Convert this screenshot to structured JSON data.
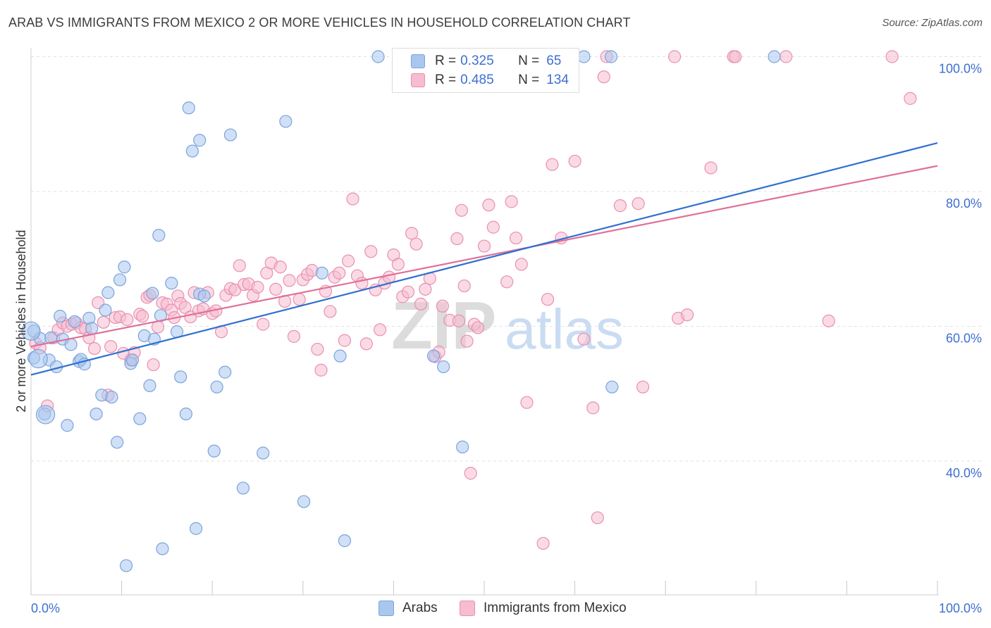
{
  "title": "ARAB VS IMMIGRANTS FROM MEXICO 2 OR MORE VEHICLES IN HOUSEHOLD CORRELATION CHART",
  "source": "Source: ZipAtlas.com",
  "colors": {
    "arabs_fill": "#a9c7ee",
    "arabs_stroke": "#7ba3dd",
    "arabs_line": "#2f6fd0",
    "mexico_fill": "#f6bcd0",
    "mexico_stroke": "#e990b0",
    "mexico_line": "#e07098",
    "tick_label": "#3d6fd1",
    "grid": "#e2e2e2",
    "watermark": "#d8d8d8"
  },
  "legend": {
    "rows": [
      {
        "r_label": "R =",
        "r_value": "0.325",
        "n_label": "N =",
        "n_value": "65",
        "color": "#a9c7ee",
        "border": "#7ba3dd"
      },
      {
        "r_label": "R =",
        "r_value": "0.485",
        "n_label": "N =",
        "n_value": "134",
        "color": "#f6bcd0",
        "border": "#e990b0"
      }
    ]
  },
  "bottom_legend": [
    {
      "label": "Arabs",
      "color": "#a9c7ee",
      "border": "#7ba3dd"
    },
    {
      "label": "Immigrants from Mexico",
      "color": "#f6bcd0",
      "border": "#e990b0"
    }
  ],
  "watermark": {
    "zip": "ZIP",
    "atlas": "atlas"
  },
  "chart_data": {
    "type": "scatter",
    "title": "ARAB VS IMMIGRANTS FROM MEXICO 2 OR MORE VEHICLES IN HOUSEHOLD CORRELATION CHART",
    "xlabel": "",
    "ylabel": "2 or more Vehicles in Household",
    "xlim": [
      0,
      100
    ],
    "ylim": [
      20,
      102
    ],
    "x_tick_labels": [
      "0.0%",
      "100.0%"
    ],
    "y_ticks": [
      40,
      60,
      80,
      100
    ],
    "y_tick_labels": [
      "40.0%",
      "60.0%",
      "80.0%",
      "100.0%"
    ],
    "grid": true,
    "legend_position": "top-center",
    "series": [
      {
        "name": "Arabs",
        "r": 0.325,
        "n": 65,
        "trend": {
          "x0": 0,
          "y0": 52.8,
          "x1": 100,
          "y1": 87.2
        },
        "points": [
          [
            0.3,
            59.3
          ],
          [
            0.3,
            55.3
          ],
          [
            1.0,
            58.2
          ],
          [
            1.5,
            47.0
          ],
          [
            2.0,
            55.0
          ],
          [
            2.2,
            58.3
          ],
          [
            2.8,
            54.0
          ],
          [
            3.2,
            61.5
          ],
          [
            3.5,
            58.1
          ],
          [
            4.0,
            45.3
          ],
          [
            4.4,
            57.3
          ],
          [
            4.8,
            60.7
          ],
          [
            5.3,
            54.8
          ],
          [
            5.5,
            55.1
          ],
          [
            5.9,
            54.4
          ],
          [
            6.4,
            61.2
          ],
          [
            6.7,
            59.7
          ],
          [
            7.2,
            47.0
          ],
          [
            7.8,
            49.8
          ],
          [
            8.2,
            62.4
          ],
          [
            8.5,
            65.0
          ],
          [
            8.9,
            49.5
          ],
          [
            9.5,
            42.8
          ],
          [
            9.8,
            66.9
          ],
          [
            10.3,
            68.8
          ],
          [
            10.5,
            24.5
          ],
          [
            11.0,
            54.5
          ],
          [
            11.2,
            55.0
          ],
          [
            12.0,
            46.3
          ],
          [
            12.5,
            58.6
          ],
          [
            13.1,
            51.2
          ],
          [
            13.4,
            64.9
          ],
          [
            13.6,
            58.1
          ],
          [
            14.1,
            73.5
          ],
          [
            14.3,
            61.6
          ],
          [
            14.5,
            27.0
          ],
          [
            15.5,
            66.4
          ],
          [
            16.1,
            59.2
          ],
          [
            16.5,
            52.5
          ],
          [
            17.1,
            47.0
          ],
          [
            17.4,
            92.4
          ],
          [
            17.8,
            86.0
          ],
          [
            18.2,
            30.0
          ],
          [
            18.6,
            87.6
          ],
          [
            18.6,
            64.8
          ],
          [
            19.1,
            64.5
          ],
          [
            20.2,
            41.5
          ],
          [
            20.5,
            51.0
          ],
          [
            21.4,
            53.2
          ],
          [
            22.0,
            88.4
          ],
          [
            23.4,
            36.0
          ],
          [
            25.6,
            41.2
          ],
          [
            28.1,
            90.4
          ],
          [
            30.1,
            34.0
          ],
          [
            32.1,
            67.9
          ],
          [
            34.1,
            55.6
          ],
          [
            34.6,
            28.2
          ],
          [
            38.3,
            100.0
          ],
          [
            44.4,
            55.6
          ],
          [
            45.5,
            54.0
          ],
          [
            47.6,
            42.1
          ],
          [
            61.0,
            100.0
          ],
          [
            64.0,
            100.0
          ],
          [
            64.1,
            51.0
          ],
          [
            82.0,
            100.0
          ]
        ],
        "large_points": [
          [
            0.0,
            59.3
          ],
          [
            0.8,
            55.2
          ],
          [
            1.6,
            46.9
          ]
        ]
      },
      {
        "name": "Immigrants from Mexico",
        "r": 0.485,
        "n": 134,
        "trend": {
          "x0": 0,
          "y0": 57.0,
          "x1": 100,
          "y1": 83.8
        },
        "points": [
          [
            0.5,
            57.5
          ],
          [
            1.0,
            56.8
          ],
          [
            1.8,
            48.2
          ],
          [
            2.5,
            58.3
          ],
          [
            3.0,
            59.5
          ],
          [
            3.5,
            60.5
          ],
          [
            4.0,
            60.0
          ],
          [
            4.5,
            60.3
          ],
          [
            5.0,
            60.5
          ],
          [
            5.5,
            59.8
          ],
          [
            6.0,
            59.6
          ],
          [
            6.4,
            58.3
          ],
          [
            7.0,
            56.7
          ],
          [
            7.4,
            63.5
          ],
          [
            8.0,
            60.6
          ],
          [
            8.5,
            49.8
          ],
          [
            8.8,
            57.0
          ],
          [
            9.3,
            61.3
          ],
          [
            9.8,
            61.4
          ],
          [
            10.2,
            56.0
          ],
          [
            10.6,
            61.0
          ],
          [
            11.0,
            55.0
          ],
          [
            11.4,
            56.1
          ],
          [
            12.0,
            61.8
          ],
          [
            12.3,
            61.5
          ],
          [
            12.8,
            64.3
          ],
          [
            13.1,
            64.6
          ],
          [
            13.5,
            54.3
          ],
          [
            14.0,
            59.9
          ],
          [
            14.5,
            63.5
          ],
          [
            15.0,
            63.3
          ],
          [
            15.5,
            62.4
          ],
          [
            15.8,
            61.3
          ],
          [
            16.2,
            64.5
          ],
          [
            16.5,
            63.4
          ],
          [
            17.0,
            62.8
          ],
          [
            17.6,
            61.4
          ],
          [
            18.0,
            65.0
          ],
          [
            18.5,
            62.3
          ],
          [
            19.0,
            62.6
          ],
          [
            19.5,
            65.0
          ],
          [
            20.0,
            61.9
          ],
          [
            20.4,
            62.3
          ],
          [
            21.0,
            59.2
          ],
          [
            21.5,
            64.6
          ],
          [
            22.0,
            65.6
          ],
          [
            22.5,
            65.4
          ],
          [
            23.0,
            69.0
          ],
          [
            23.5,
            66.2
          ],
          [
            24.0,
            66.3
          ],
          [
            24.5,
            64.6
          ],
          [
            25.0,
            65.8
          ],
          [
            25.6,
            60.3
          ],
          [
            26.0,
            67.9
          ],
          [
            26.5,
            69.4
          ],
          [
            27.0,
            65.5
          ],
          [
            27.5,
            68.8
          ],
          [
            28.0,
            63.7
          ],
          [
            28.5,
            66.8
          ],
          [
            29.0,
            58.5
          ],
          [
            29.6,
            64.0
          ],
          [
            30.0,
            66.9
          ],
          [
            30.5,
            67.7
          ],
          [
            31.0,
            68.3
          ],
          [
            31.6,
            56.6
          ],
          [
            32.0,
            53.5
          ],
          [
            32.5,
            65.2
          ],
          [
            33.0,
            62.2
          ],
          [
            33.5,
            67.3
          ],
          [
            34.0,
            67.9
          ],
          [
            34.6,
            57.9
          ],
          [
            35.0,
            69.7
          ],
          [
            35.5,
            78.9
          ],
          [
            36.0,
            67.5
          ],
          [
            36.5,
            66.4
          ],
          [
            37.0,
            57.4
          ],
          [
            37.5,
            71.1
          ],
          [
            38.0,
            65.4
          ],
          [
            38.5,
            59.5
          ],
          [
            39.0,
            66.4
          ],
          [
            39.5,
            67.3
          ],
          [
            40.0,
            70.6
          ],
          [
            40.5,
            69.2
          ],
          [
            41.0,
            64.4
          ],
          [
            41.6,
            65.1
          ],
          [
            42.0,
            73.8
          ],
          [
            42.5,
            72.2
          ],
          [
            43.0,
            63.3
          ],
          [
            43.5,
            65.5
          ],
          [
            44.0,
            67.1
          ],
          [
            44.6,
            55.5
          ],
          [
            45.0,
            56.2
          ],
          [
            45.4,
            63.0
          ],
          [
            46.2,
            60.9
          ],
          [
            47.0,
            73.0
          ],
          [
            47.5,
            77.2
          ],
          [
            47.8,
            66.0
          ],
          [
            48.5,
            38.2
          ],
          [
            48.9,
            60.3
          ],
          [
            49.3,
            59.8
          ],
          [
            47.2,
            60.8
          ],
          [
            48.1,
            57.8
          ],
          [
            50.0,
            71.9
          ],
          [
            50.5,
            78.0
          ],
          [
            51.0,
            74.7
          ],
          [
            51.5,
            100.0
          ],
          [
            52.5,
            66.6
          ],
          [
            53.0,
            78.5
          ],
          [
            53.5,
            73.1
          ],
          [
            54.1,
            69.2
          ],
          [
            54.7,
            48.7
          ],
          [
            56.5,
            27.8
          ],
          [
            57.0,
            64.0
          ],
          [
            57.5,
            84.0
          ],
          [
            58.5,
            73.1
          ],
          [
            60.0,
            84.5
          ],
          [
            61.0,
            58.1
          ],
          [
            62.0,
            47.9
          ],
          [
            62.5,
            31.6
          ],
          [
            63.2,
            97.0
          ],
          [
            63.5,
            100.0
          ],
          [
            65.0,
            77.9
          ],
          [
            67.0,
            78.2
          ],
          [
            67.5,
            51.0
          ],
          [
            71.0,
            100.0
          ],
          [
            71.4,
            61.2
          ],
          [
            72.4,
            61.7
          ],
          [
            75.0,
            83.5
          ],
          [
            77.5,
            100.0
          ],
          [
            77.7,
            100.0
          ],
          [
            83.3,
            100.0
          ],
          [
            88.0,
            60.8
          ],
          [
            95.0,
            100.0
          ],
          [
            97.0,
            93.8
          ]
        ]
      }
    ]
  }
}
